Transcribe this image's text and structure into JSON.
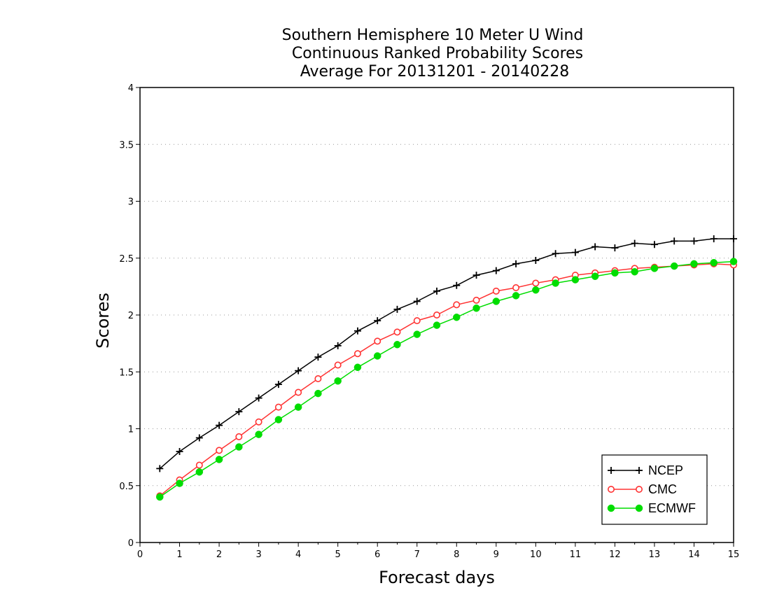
{
  "chart_data": {
    "type": "line",
    "title": [
      "Southern Hemisphere 10 Meter U Wind",
      "Continuous Ranked Probability Scores",
      "Average For 20131201 - 20140228"
    ],
    "xlabel": "Forecast days",
    "ylabel": "Scores",
    "xlim": [
      0,
      15
    ],
    "ylim": [
      0,
      4
    ],
    "xticks": [
      "0",
      "1",
      "2",
      "3",
      "4",
      "5",
      "6",
      "7",
      "8",
      "9",
      "10",
      "11",
      "12",
      "13",
      "14",
      "15"
    ],
    "yticks": [
      "0",
      "0.5",
      "1",
      "1.5",
      "2",
      "2.5",
      "3",
      "3.5",
      "4"
    ],
    "grid": "horizontal dotted",
    "legend_position": "bottom-right",
    "x": [
      0.5,
      1,
      1.5,
      2,
      2.5,
      3,
      3.5,
      4,
      4.5,
      5,
      5.5,
      6,
      6.5,
      7,
      7.5,
      8,
      8.5,
      9,
      9.5,
      10,
      10.5,
      11,
      11.5,
      12,
      12.5,
      13,
      13.5,
      14,
      14.5,
      15
    ],
    "series": [
      {
        "name": "NCEP",
        "color": "#000000",
        "marker": "plus",
        "values": [
          0.65,
          0.8,
          0.92,
          1.03,
          1.15,
          1.27,
          1.39,
          1.51,
          1.63,
          1.73,
          1.86,
          1.95,
          2.05,
          2.12,
          2.21,
          2.26,
          2.35,
          2.39,
          2.45,
          2.48,
          2.54,
          2.55,
          2.6,
          2.59,
          2.63,
          2.62,
          2.65,
          2.65,
          2.67,
          2.67
        ]
      },
      {
        "name": "CMC",
        "color": "#ff3333",
        "marker": "open-circle",
        "values": [
          0.41,
          0.55,
          0.68,
          0.81,
          0.93,
          1.06,
          1.19,
          1.32,
          1.44,
          1.56,
          1.66,
          1.77,
          1.85,
          1.95,
          2.0,
          2.09,
          2.13,
          2.21,
          2.24,
          2.28,
          2.31,
          2.35,
          2.37,
          2.39,
          2.41,
          2.42,
          2.43,
          2.44,
          2.45,
          2.44
        ]
      },
      {
        "name": "ECMWF",
        "color": "#00dd00",
        "marker": "filled-circle",
        "values": [
          0.4,
          0.52,
          0.62,
          0.73,
          0.84,
          0.95,
          1.08,
          1.19,
          1.31,
          1.42,
          1.54,
          1.64,
          1.74,
          1.83,
          1.91,
          1.98,
          2.06,
          2.12,
          2.17,
          2.22,
          2.28,
          2.31,
          2.34,
          2.37,
          2.38,
          2.41,
          2.43,
          2.45,
          2.46,
          2.47
        ]
      }
    ]
  }
}
